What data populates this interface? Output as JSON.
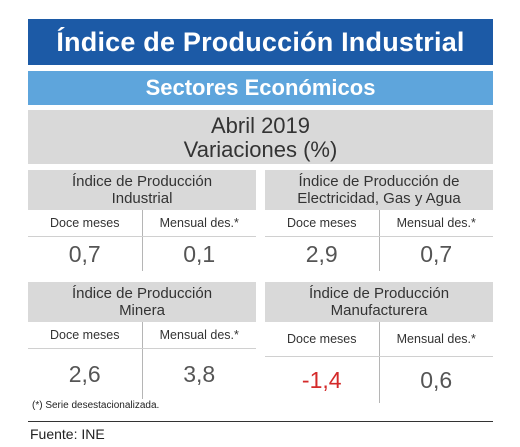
{
  "title": "Índice de Producción Industrial",
  "subtitle": "Sectores Económicos",
  "period": {
    "line1": "Abril 2019",
    "line2": "Variaciones (%)"
  },
  "cards": [
    {
      "title_line1": "Índice de Producción",
      "title_line2": "Industrial",
      "label_left": "Doce meses",
      "label_right": "Mensual des.*",
      "value_left": "0,7",
      "value_right": "0,1"
    },
    {
      "title_line1": "Índice de Producción de",
      "title_line2": "Electricidad, Gas y Agua",
      "label_left": "Doce meses",
      "label_right": "Mensual des.*",
      "value_left": "2,9",
      "value_right": "0,7"
    },
    {
      "title_line1": "Índice de Producción",
      "title_line2": "Minera",
      "label_left": "Doce meses",
      "label_right": "Mensual des.*",
      "value_left": "2,6",
      "value_right": "3,8"
    },
    {
      "title_line1": "Índice de Producción",
      "title_line2": "Manufacturera",
      "label_left": "Doce meses",
      "label_right": "Mensual des.*",
      "value_left": "-1,4",
      "value_right": "0,6"
    }
  ],
  "footnote": "(*)   Serie desestacionalizada.",
  "source": "Fuente: INE",
  "colors": {
    "title_bg": "#1c5aa6",
    "subtitle_bg": "#5ea5dc",
    "panel_bg": "#d9d9d9",
    "negative": "#d42a2a"
  }
}
